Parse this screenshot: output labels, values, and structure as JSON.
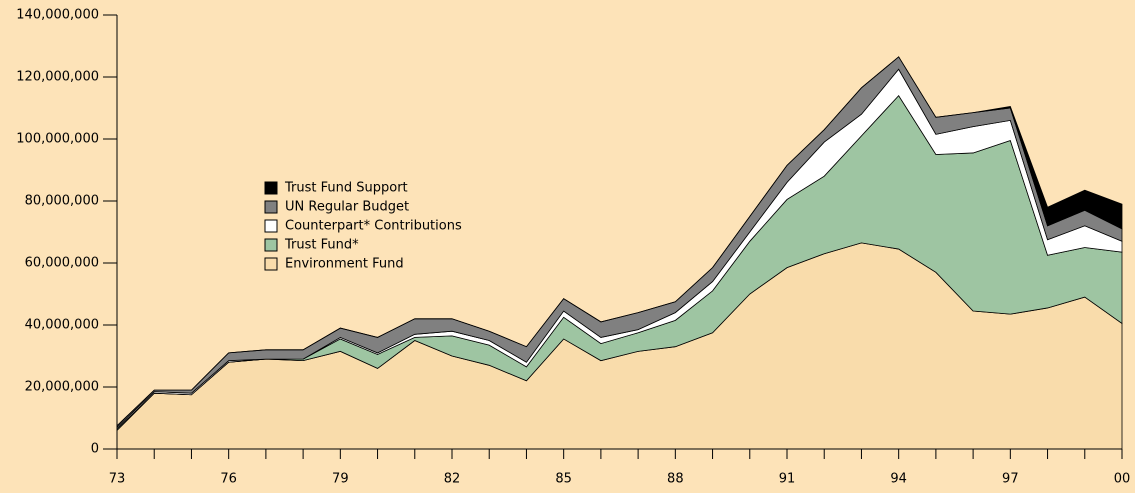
{
  "chart_data": {
    "type": "stacked-area",
    "categories": [
      "73",
      null,
      null,
      "76",
      null,
      null,
      "79",
      null,
      null,
      "82",
      null,
      null,
      "85",
      null,
      null,
      "88",
      null,
      null,
      "91",
      null,
      null,
      "94",
      null,
      null,
      "97",
      null,
      null,
      "00"
    ],
    "series": [
      {
        "name": "Environment Fund",
        "color": "#f9dcab",
        "values": [
          6000000,
          18000000,
          17500000,
          28000000,
          29000000,
          28500000,
          31500000,
          26000000,
          35000000,
          30000000,
          27000000,
          22000000,
          35500000,
          28500000,
          31500000,
          33000000,
          37500000,
          50000000,
          58500000,
          63000000,
          66500000,
          64500000,
          57000000,
          44500000,
          43500000,
          45500000,
          49000000,
          40500000
        ]
      },
      {
        "name": "Trust Fund*",
        "color": "#9ec5a2",
        "values": [
          500000,
          0,
          0,
          0,
          0,
          500000,
          4000000,
          4500000,
          1000000,
          6500000,
          6500000,
          4500000,
          7000000,
          5500000,
          6000000,
          8500000,
          13500000,
          17000000,
          22000000,
          25000000,
          34500000,
          49500000,
          38000000,
          51000000,
          56000000,
          17000000,
          16000000,
          23000000
        ]
      },
      {
        "name": "Counterpart* Contributions",
        "color": "#ffffff",
        "values": [
          500000,
          500000,
          500000,
          500000,
          0,
          0,
          500000,
          500000,
          1000000,
          1500000,
          1500000,
          1500000,
          2000000,
          2000000,
          1000000,
          2500000,
          3000000,
          3000000,
          5500000,
          11000000,
          7000000,
          8500000,
          6500000,
          8500000,
          6500000,
          5000000,
          7000000,
          3500000
        ]
      },
      {
        "name": "UN Regular Budget",
        "color": "#808080",
        "values": [
          500000,
          500000,
          1000000,
          2500000,
          3000000,
          3000000,
          3000000,
          5000000,
          5000000,
          4000000,
          3000000,
          5000000,
          4000000,
          5000000,
          5500000,
          3500000,
          4500000,
          5000000,
          5500000,
          4000000,
          8500000,
          4000000,
          5500000,
          4500000,
          4000000,
          4500000,
          5000000,
          4000000
        ]
      },
      {
        "name": "Trust Fund Support",
        "color": "#000000",
        "values": [
          0,
          0,
          0,
          0,
          0,
          0,
          0,
          0,
          0,
          0,
          0,
          0,
          0,
          0,
          0,
          0,
          0,
          0,
          0,
          0,
          0,
          0,
          0,
          0,
          500000,
          6000000,
          6500000,
          8000000
        ]
      }
    ],
    "ylim": [
      0,
      140000000
    ],
    "yticks": [
      0,
      {
        "value": 20000000,
        "label": "20,000,000"
      },
      {
        "value": 40000000,
        "label": "40,000,000"
      },
      {
        "value": 60000000,
        "label": "60,000,000"
      },
      {
        "value": 80000000,
        "label": "80,000,000"
      },
      {
        "value": 100000000,
        "label": "100,000,000"
      },
      {
        "value": 120000000,
        "label": "120,000,000"
      },
      {
        "value": 140000000,
        "label": "140,000,000"
      }
    ]
  }
}
